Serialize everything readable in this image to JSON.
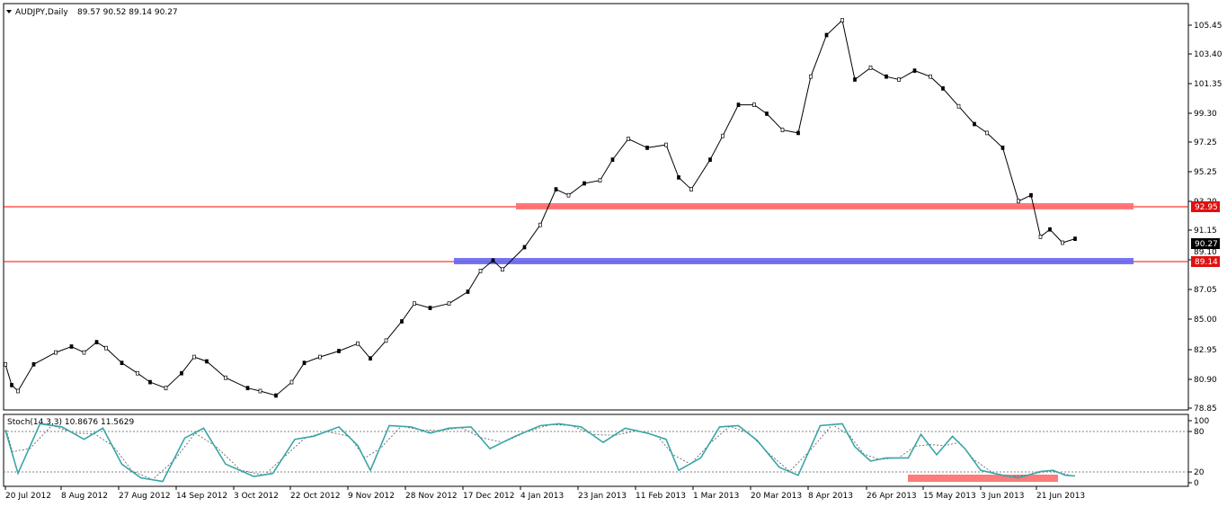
{
  "header": {
    "symbol": "AUDJPY,Daily",
    "ohlc": "89.57 90.52 89.14 90.27"
  },
  "price_axis": {
    "ticks": [
      "105.45",
      "103.40",
      "101.35",
      "99.30",
      "97.25",
      "95.25",
      "93.20",
      "91.15",
      "89.10",
      "87.05",
      "85.00",
      "82.95",
      "80.90",
      "78.85"
    ]
  },
  "price_tags": {
    "resistance": "92.95",
    "current": "90.27",
    "support": "89.14"
  },
  "date_axis": {
    "labels": [
      "20 Jul 2012",
      "8 Aug 2012",
      "27 Aug 2012",
      "14 Sep 2012",
      "3 Oct 2012",
      "22 Oct 2012",
      "9 Nov 2012",
      "28 Nov 2012",
      "17 Dec 2012",
      "4 Jan 2013",
      "23 Jan 2013",
      "11 Feb 2013",
      "1 Mar 2013",
      "20 Mar 2013",
      "8 Apr 2013",
      "26 Apr 2013",
      "15 May 2013",
      "3 Jun 2013",
      "21 Jun 2013"
    ]
  },
  "stoch": {
    "label": "Stoch(14,3,3) 10.8676 11.5629",
    "ticks": [
      "100",
      "80",
      "20",
      "0"
    ]
  },
  "colors": {
    "line_color": "#ff0000",
    "resistance_zone": "#ff6b6b",
    "support_zone": "#6666ee",
    "main_stoch": "#3aa6a6",
    "tag_red": "#e01010",
    "tag_current": "#000000"
  },
  "chart_data": {
    "type": "candlestick",
    "symbol": "AUDJPY",
    "timeframe": "Daily",
    "ylim": [
      78.85,
      106.0
    ],
    "horizontal_lines": [
      92.95,
      89.14
    ],
    "zones": [
      {
        "color": "red",
        "price": 92.95,
        "from": "4 Jan 2013",
        "to": "21 Jun 2013"
      },
      {
        "color": "blue",
        "price": 89.14,
        "from": "17 Dec 2012",
        "to": "21 Jun 2013"
      }
    ],
    "close_path": [
      {
        "x": "16 Jul 2012",
        "y": 81.8
      },
      {
        "x": "18 Jul 2012",
        "y": 80.4
      },
      {
        "x": "20 Jul 2012",
        "y": 80.0
      },
      {
        "x": "25 Jul 2012",
        "y": 81.8
      },
      {
        "x": "1 Aug 2012",
        "y": 82.6
      },
      {
        "x": "6 Aug 2012",
        "y": 83.0
      },
      {
        "x": "10 Aug 2012",
        "y": 82.6
      },
      {
        "x": "14 Aug 2012",
        "y": 83.3
      },
      {
        "x": "17 Aug 2012",
        "y": 82.9
      },
      {
        "x": "22 Aug 2012",
        "y": 81.9
      },
      {
        "x": "27 Aug 2012",
        "y": 81.2
      },
      {
        "x": "31 Aug 2012",
        "y": 80.6
      },
      {
        "x": "5 Sep 2012",
        "y": 80.2
      },
      {
        "x": "10 Sep 2012",
        "y": 81.2
      },
      {
        "x": "14 Sep 2012",
        "y": 82.3
      },
      {
        "x": "18 Sep 2012",
        "y": 82.0
      },
      {
        "x": "24 Sep 2012",
        "y": 80.9
      },
      {
        "x": "1 Oct 2012",
        "y": 80.2
      },
      {
        "x": "5 Oct 2012",
        "y": 80.0
      },
      {
        "x": "10 Oct 2012",
        "y": 79.7
      },
      {
        "x": "15 Oct 2012",
        "y": 80.6
      },
      {
        "x": "19 Oct 2012",
        "y": 81.9
      },
      {
        "x": "24 Oct 2012",
        "y": 82.3
      },
      {
        "x": "30 Oct 2012",
        "y": 82.7
      },
      {
        "x": "5 Nov 2012",
        "y": 83.2
      },
      {
        "x": "9 Nov 2012",
        "y": 82.2
      },
      {
        "x": "14 Nov 2012",
        "y": 83.4
      },
      {
        "x": "19 Nov 2012",
        "y": 84.7
      },
      {
        "x": "23 Nov 2012",
        "y": 85.9
      },
      {
        "x": "28 Nov 2012",
        "y": 85.6
      },
      {
        "x": "4 Dec 2012",
        "y": 85.9
      },
      {
        "x": "10 Dec 2012",
        "y": 86.7
      },
      {
        "x": "14 Dec 2012",
        "y": 88.1
      },
      {
        "x": "18 Dec 2012",
        "y": 88.8
      },
      {
        "x": "21 Dec 2012",
        "y": 88.2
      },
      {
        "x": "28 Dec 2012",
        "y": 89.7
      },
      {
        "x": "2 Jan 2013",
        "y": 91.2
      },
      {
        "x": "7 Jan 2013",
        "y": 93.6
      },
      {
        "x": "11 Jan 2013",
        "y": 93.2
      },
      {
        "x": "16 Jan 2013",
        "y": 94.0
      },
      {
        "x": "21 Jan 2013",
        "y": 94.2
      },
      {
        "x": "25 Jan 2013",
        "y": 95.6
      },
      {
        "x": "30 Jan 2013",
        "y": 97.0
      },
      {
        "x": "5 Feb 2013",
        "y": 96.4
      },
      {
        "x": "11 Feb 2013",
        "y": 96.6
      },
      {
        "x": "15 Feb 2013",
        "y": 94.4
      },
      {
        "x": "19 Feb 2013",
        "y": 93.6
      },
      {
        "x": "25 Feb 2013",
        "y": 95.6
      },
      {
        "x": "1 Mar 2013",
        "y": 97.2
      },
      {
        "x": "6 Mar 2013",
        "y": 99.3
      },
      {
        "x": "11 Mar 2013",
        "y": 99.3
      },
      {
        "x": "15 Mar 2013",
        "y": 98.7
      },
      {
        "x": "20 Mar 2013",
        "y": 97.6
      },
      {
        "x": "25 Mar 2013",
        "y": 97.4
      },
      {
        "x": "29 Mar 2013",
        "y": 101.2
      },
      {
        "x": "3 Apr 2013",
        "y": 104.0
      },
      {
        "x": "8 Apr 2013",
        "y": 105.0
      },
      {
        "x": "12 Apr 2013",
        "y": 101.0
      },
      {
        "x": "17 Apr 2013",
        "y": 101.8
      },
      {
        "x": "22 Apr 2013",
        "y": 101.2
      },
      {
        "x": "26 Apr 2013",
        "y": 101.0
      },
      {
        "x": "1 May 2013",
        "y": 101.6
      },
      {
        "x": "6 May 2013",
        "y": 101.2
      },
      {
        "x": "10 May 2013",
        "y": 100.4
      },
      {
        "x": "15 May 2013",
        "y": 99.2
      },
      {
        "x": "20 May 2013",
        "y": 98.0
      },
      {
        "x": "24 May 2013",
        "y": 97.4
      },
      {
        "x": "29 May 2013",
        "y": 96.4
      },
      {
        "x": "3 Jun 2013",
        "y": 92.8
      },
      {
        "x": "7 Jun 2013",
        "y": 93.2
      },
      {
        "x": "10 Jun 2013",
        "y": 90.4
      },
      {
        "x": "13 Jun 2013",
        "y": 90.9
      },
      {
        "x": "17 Jun 2013",
        "y": 90.0
      },
      {
        "x": "21 Jun 2013",
        "y": 90.27
      }
    ],
    "stochastic": {
      "name": "Stoch(14,3,3)",
      "main": 10.8676,
      "signal": 11.5629,
      "ylim": [
        0,
        100
      ],
      "levels": [
        80,
        20
      ],
      "zone": {
        "color": "red",
        "value": 12,
        "from": "10 May 2013",
        "to": "21 Jun 2013"
      },
      "path": [
        {
          "x": "16 Jul 2012",
          "y": 85
        },
        {
          "x": "20 Jul 2012",
          "y": 15
        },
        {
          "x": "27 Jul 2012",
          "y": 95
        },
        {
          "x": "3 Aug 2012",
          "y": 90
        },
        {
          "x": "10 Aug 2012",
          "y": 70
        },
        {
          "x": "16 Aug 2012",
          "y": 88
        },
        {
          "x": "22 Aug 2012",
          "y": 30
        },
        {
          "x": "28 Aug 2012",
          "y": 8
        },
        {
          "x": "4 Sep 2012",
          "y": 2
        },
        {
          "x": "11 Sep 2012",
          "y": 72
        },
        {
          "x": "17 Sep 2012",
          "y": 88
        },
        {
          "x": "24 Sep 2012",
          "y": 30
        },
        {
          "x": "3 Oct 2012",
          "y": 10
        },
        {
          "x": "9 Oct 2012",
          "y": 15
        },
        {
          "x": "16 Oct 2012",
          "y": 70
        },
        {
          "x": "22 Oct 2012",
          "y": 75
        },
        {
          "x": "30 Oct 2012",
          "y": 90
        },
        {
          "x": "5 Nov 2012",
          "y": 60
        },
        {
          "x": "9 Nov 2012",
          "y": 20
        },
        {
          "x": "15 Nov 2012",
          "y": 92
        },
        {
          "x": "22 Nov 2012",
          "y": 90
        },
        {
          "x": "28 Nov 2012",
          "y": 80
        },
        {
          "x": "4 Dec 2012",
          "y": 88
        },
        {
          "x": "11 Dec 2012",
          "y": 90
        },
        {
          "x": "17 Dec 2012",
          "y": 55
        },
        {
          "x": "25 Dec 2012",
          "y": 75
        },
        {
          "x": "2 Jan 2013",
          "y": 92
        },
        {
          "x": "8 Jan 2013",
          "y": 95
        },
        {
          "x": "15 Jan 2013",
          "y": 90
        },
        {
          "x": "22 Jan 2013",
          "y": 65
        },
        {
          "x": "29 Jan 2013",
          "y": 88
        },
        {
          "x": "5 Feb 2013",
          "y": 80
        },
        {
          "x": "11 Feb 2013",
          "y": 70
        },
        {
          "x": "15 Feb 2013",
          "y": 20
        },
        {
          "x": "22 Feb 2013",
          "y": 40
        },
        {
          "x": "28 Feb 2013",
          "y": 90
        },
        {
          "x": "6 Mar 2013",
          "y": 92
        },
        {
          "x": "12 Mar 2013",
          "y": 68
        },
        {
          "x": "19 Mar 2013",
          "y": 25
        },
        {
          "x": "25 Mar 2013",
          "y": 12
        },
        {
          "x": "1 Apr 2013",
          "y": 92
        },
        {
          "x": "8 Apr 2013",
          "y": 95
        },
        {
          "x": "12 Apr 2013",
          "y": 58
        },
        {
          "x": "17 Apr 2013",
          "y": 35
        },
        {
          "x": "22 Apr 2013",
          "y": 40
        },
        {
          "x": "29 Apr 2013",
          "y": 40
        },
        {
          "x": "3 May 2013",
          "y": 78
        },
        {
          "x": "8 May 2013",
          "y": 45
        },
        {
          "x": "13 May 2013",
          "y": 75
        },
        {
          "x": "17 May 2013",
          "y": 55
        },
        {
          "x": "22 May 2013",
          "y": 20
        },
        {
          "x": "29 May 2013",
          "y": 12
        },
        {
          "x": "3 Jun 2013",
          "y": 8
        },
        {
          "x": "10 Jun 2013",
          "y": 18
        },
        {
          "x": "14 Jun 2013",
          "y": 20
        },
        {
          "x": "18 Jun 2013",
          "y": 12
        },
        {
          "x": "21 Jun 2013",
          "y": 10.8676
        }
      ]
    }
  }
}
